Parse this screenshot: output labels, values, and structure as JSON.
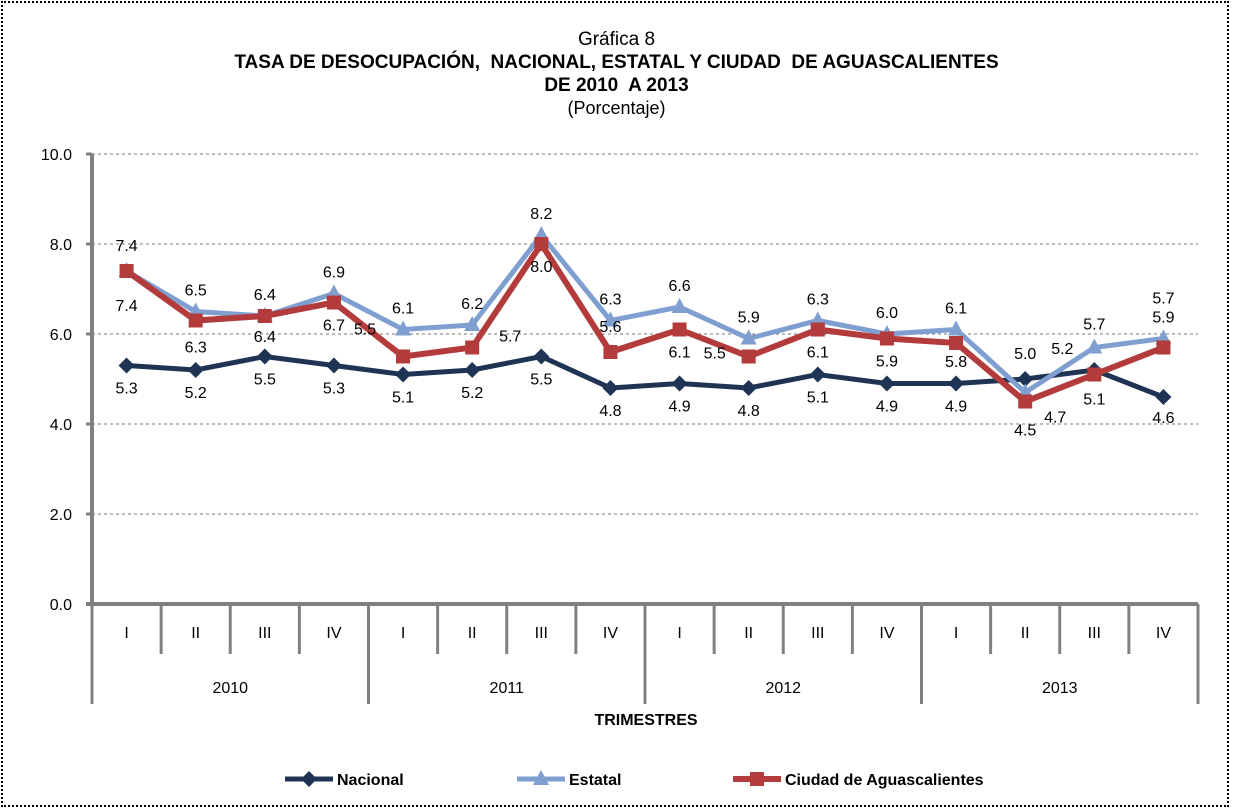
{
  "chart_data": {
    "type": "line",
    "title_small": "Gráfica 8",
    "title": "TASA DE DESOCUPACIÓN,  NACIONAL, ESTATAL Y CIUDAD  DE AGUASCALIENTES",
    "subtitle": "DE 2010  A 2013",
    "units": "(Porcentaje)",
    "xlabel": "TRIMESTRES",
    "ylabel": "",
    "ylim": [
      0,
      10
    ],
    "yticks": [
      "0.0",
      "2.0",
      "4.0",
      "6.0",
      "8.0",
      "10.0"
    ],
    "ytick_values": [
      0,
      2,
      4,
      6,
      8,
      10
    ],
    "grid": true,
    "legend_position": "bottom",
    "categories": [
      "I",
      "II",
      "III",
      "IV",
      "I",
      "II",
      "III",
      "IV",
      "I",
      "II",
      "III",
      "IV",
      "I",
      "II",
      "III",
      "IV"
    ],
    "groups": [
      {
        "label": "2010",
        "count": 4
      },
      {
        "label": "2011",
        "count": 4
      },
      {
        "label": "2012",
        "count": 4
      },
      {
        "label": "2013",
        "count": 4
      }
    ],
    "series": [
      {
        "name": "Nacional",
        "color": "#1F3454",
        "marker": "diamond",
        "values": [
          5.3,
          5.2,
          5.5,
          5.3,
          5.1,
          5.2,
          5.5,
          4.8,
          4.9,
          4.8,
          5.1,
          4.9,
          4.9,
          5.0,
          5.2,
          4.6
        ],
        "labels": [
          "5.3",
          "5.2",
          "5.5",
          "5.3",
          "5.1",
          "5.2",
          "5.5",
          "4.8",
          "4.9",
          "4.8",
          "5.1",
          "4.9",
          "4.9",
          "5.0",
          "5.2",
          "4.6"
        ]
      },
      {
        "name": "Estatal",
        "color": "#7F9FD0",
        "marker": "triangle",
        "values": [
          7.4,
          6.5,
          6.4,
          6.9,
          6.1,
          6.2,
          8.2,
          6.3,
          6.6,
          5.9,
          6.3,
          6.0,
          6.1,
          4.7,
          5.7,
          5.9
        ],
        "labels": [
          "7.4",
          "6.5",
          "6.4",
          "6.9",
          "6.1",
          "6.2",
          "8.2",
          "6.3",
          "6.6",
          "5.9",
          "6.3",
          "6.0",
          "6.1",
          "4.7",
          "5.7",
          "5.9"
        ]
      },
      {
        "name": "Ciudad de Aguascalientes",
        "color": "#B33B3B",
        "marker": "square",
        "values": [
          7.4,
          6.3,
          6.4,
          6.7,
          5.5,
          5.7,
          8.0,
          5.6,
          6.1,
          5.5,
          6.1,
          5.9,
          5.8,
          4.5,
          5.1,
          5.7
        ],
        "labels": [
          "7.4",
          "6.3",
          "6.4",
          "6.7",
          "5.5",
          "5.7",
          "8.0",
          "5.6",
          "6.1",
          "5.5",
          "6.1",
          "5.9",
          "5.8",
          "4.5",
          "5.1",
          "5.7"
        ]
      }
    ]
  }
}
